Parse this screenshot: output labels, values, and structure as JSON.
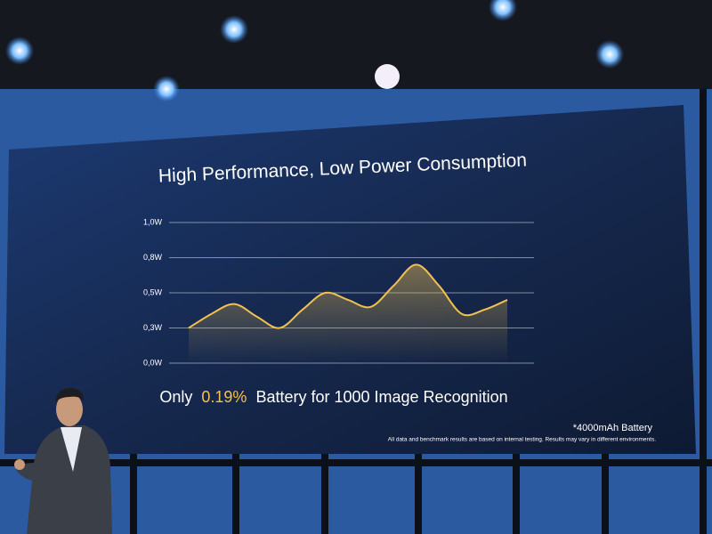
{
  "chart_data": {
    "type": "line",
    "title": "High Performance, Low Power Consumption",
    "categories": [
      null,
      null,
      null,
      null,
      null,
      null,
      null,
      null,
      null,
      null,
      null,
      null,
      null,
      null,
      null
    ],
    "values": [
      0.25,
      0.35,
      0.42,
      0.33,
      0.25,
      0.38,
      0.5,
      0.45,
      0.4,
      0.55,
      0.7,
      0.55,
      0.35,
      0.38,
      0.45
    ],
    "color": "#f2c14e",
    "ylim": [
      0,
      1
    ],
    "yticks": [
      {
        "value": 0,
        "label": "0,0W"
      },
      {
        "value": 0.25,
        "label": "0,3W"
      },
      {
        "value": 0.5,
        "label": "0,5W"
      },
      {
        "value": 0.75,
        "label": "0,8W"
      },
      {
        "value": 1,
        "label": "1,0W"
      }
    ],
    "grid": true,
    "caption": {
      "prefix": "Only",
      "highlight": "0.19%",
      "suffix": "Battery for 1000 Image Recognition"
    },
    "footnotes": [
      "*4000mAh Battery",
      "All data and benchmark results are based on internal testing. Results may vary in different environments."
    ]
  }
}
